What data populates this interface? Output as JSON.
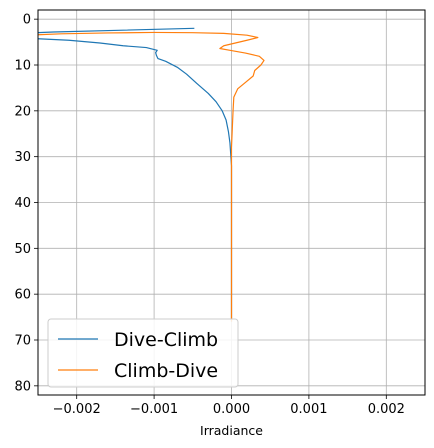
{
  "chart_data": {
    "type": "line",
    "xlabel": "Irradiance",
    "ylabel": "",
    "xlim": [
      -0.0025,
      0.0025
    ],
    "ylim": [
      82,
      -2
    ],
    "y_inverted": true,
    "x_ticks": [
      -0.002,
      -0.001,
      0.0,
      0.001,
      0.002
    ],
    "x_tick_labels": [
      "−0.002",
      "−0.001",
      "0.000",
      "0.001",
      "0.002"
    ],
    "y_ticks": [
      0,
      10,
      20,
      30,
      40,
      50,
      60,
      70,
      80
    ],
    "y_tick_labels": [
      "0",
      "10",
      "20",
      "30",
      "40",
      "50",
      "60",
      "70",
      "80"
    ],
    "grid": true,
    "legend_position": "lower-left",
    "series": [
      {
        "name": "Dive-Climb",
        "color": "#1f77b4",
        "points": [
          [
            -0.00048,
            2.0
          ],
          [
            -0.0014,
            2.4
          ],
          [
            -0.0023,
            2.8
          ],
          [
            -0.0026,
            3.0
          ],
          [
            -0.0026,
            4.2
          ],
          [
            -0.0021,
            4.6
          ],
          [
            -0.0017,
            5.2
          ],
          [
            -0.0014,
            5.8
          ],
          [
            -0.0011,
            6.2
          ],
          [
            -0.00096,
            6.8
          ],
          [
            -0.00098,
            7.3
          ],
          [
            -0.00097,
            7.9
          ],
          [
            -0.00095,
            8.6
          ],
          [
            -0.00085,
            9.2
          ],
          [
            -0.0007,
            10.5
          ],
          [
            -0.00058,
            12.0
          ],
          [
            -0.00045,
            14.0
          ],
          [
            -0.0003,
            16.2
          ],
          [
            -0.0002,
            18.0
          ],
          [
            -0.00012,
            20.0
          ],
          [
            -7e-05,
            22.0
          ],
          [
            -4e-05,
            24.5
          ],
          [
            -2e-05,
            27.0
          ],
          [
            -1e-05,
            29.5
          ],
          [
            0.0,
            32.0
          ],
          [
            0.0,
            66.0
          ]
        ]
      },
      {
        "name": "Climb-Dive",
        "color": "#ff7f0e",
        "points": [
          [
            -0.0025,
            3.4
          ],
          [
            -0.0022,
            3.2
          ],
          [
            -0.0016,
            3.0
          ],
          [
            -0.001,
            2.9
          ],
          [
            -0.0005,
            2.95
          ],
          [
            -0.0001,
            3.1
          ],
          [
            0.0002,
            3.5
          ],
          [
            0.00034,
            4.0
          ],
          [
            0.0002,
            4.6
          ],
          [
            5e-05,
            5.2
          ],
          [
            -0.0001,
            5.8
          ],
          [
            -0.00015,
            6.4
          ],
          [
            -2e-05,
            6.8
          ],
          [
            0.00018,
            7.4
          ],
          [
            0.00036,
            8.1
          ],
          [
            0.00042,
            9.0
          ],
          [
            0.00038,
            10.0
          ],
          [
            0.0003,
            11.2
          ],
          [
            0.00028,
            12.4
          ],
          [
            0.00018,
            13.8
          ],
          [
            8e-05,
            15.2
          ],
          [
            3e-05,
            17.0
          ],
          [
            2e-05,
            20.0
          ],
          [
            1e-05,
            24.0
          ],
          [
            0.0,
            28.0
          ],
          [
            0.0,
            66.0
          ]
        ]
      }
    ]
  }
}
